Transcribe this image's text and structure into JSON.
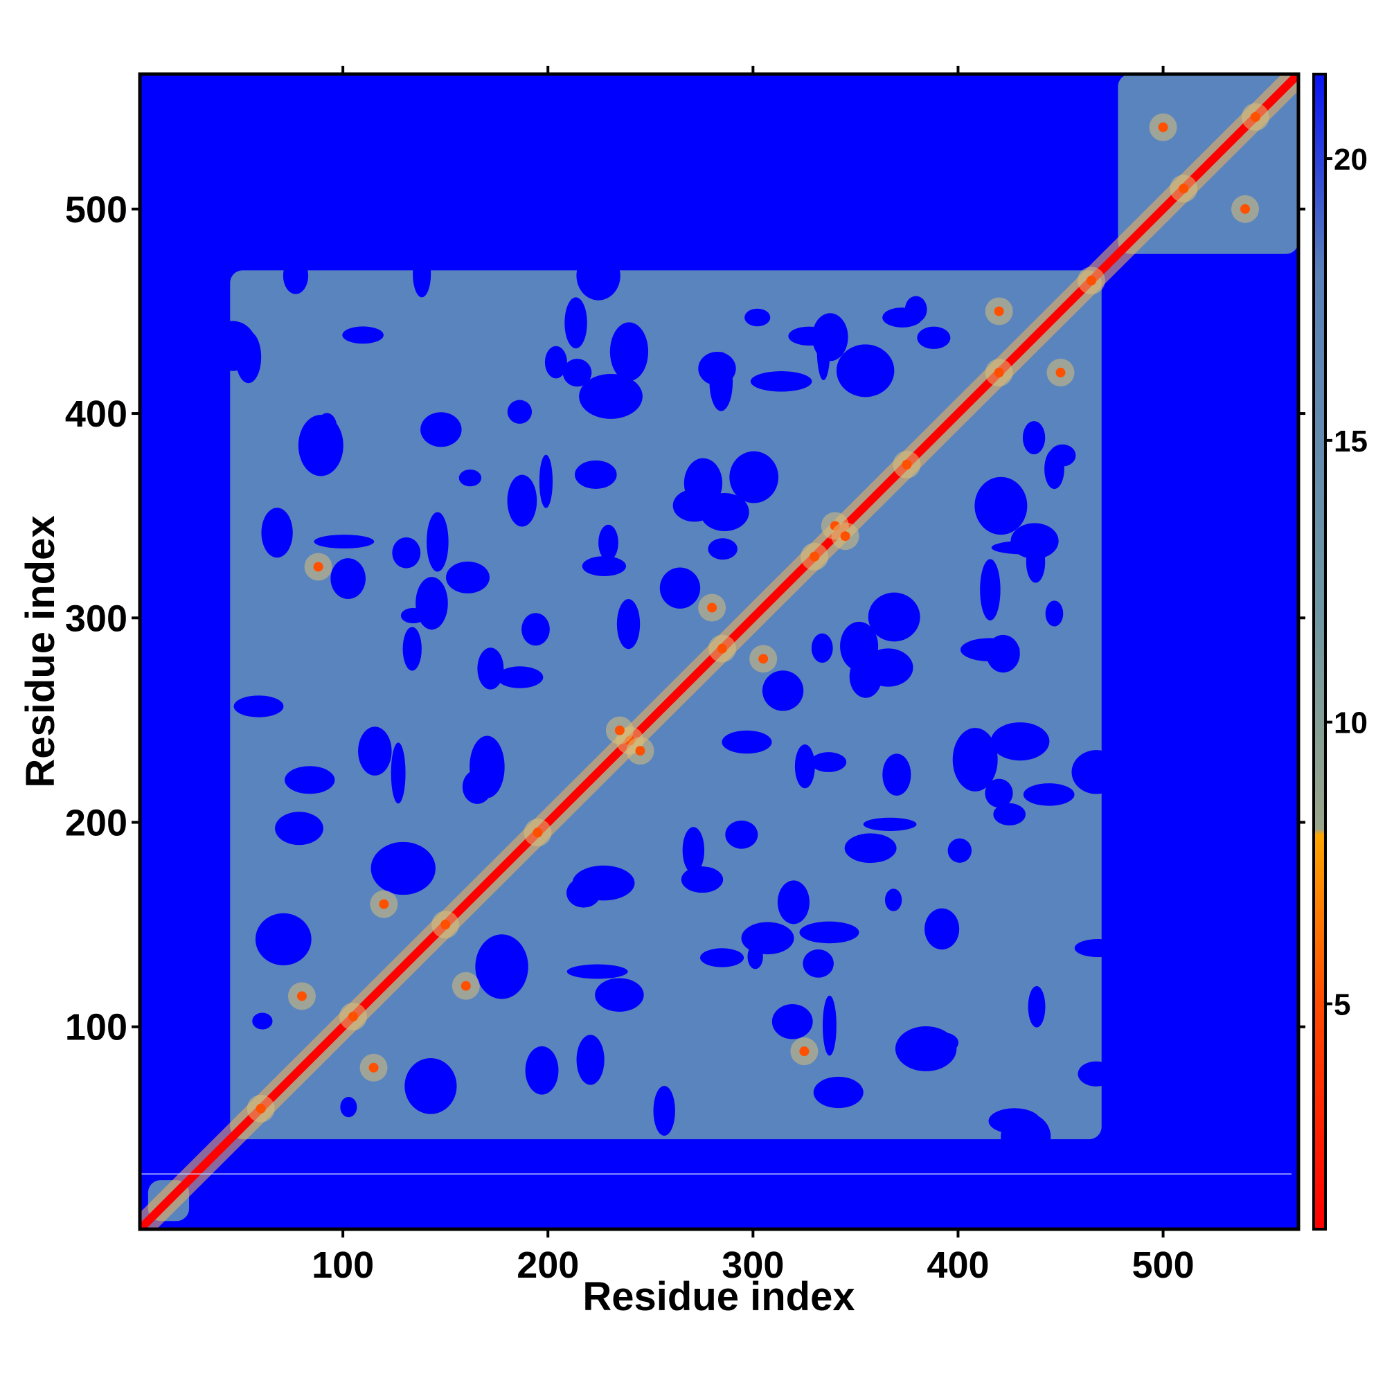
{
  "chart_data": {
    "type": "heatmap",
    "title": "",
    "xlabel": "Residue index",
    "ylabel": "Residue index",
    "n_residues": 566,
    "xlim": [
      1,
      566
    ],
    "ylim": [
      1,
      566
    ],
    "x_ticks": [
      100,
      200,
      300,
      400,
      500
    ],
    "y_ticks": [
      100,
      200,
      300,
      400,
      500
    ],
    "x_tick_labels": [
      "100",
      "200",
      "300",
      "400",
      "500"
    ],
    "y_tick_labels": [
      "100",
      "200",
      "300",
      "400",
      "500"
    ],
    "colorbar": {
      "min": 1,
      "max": 21.5,
      "ticks": [
        5,
        10,
        15,
        20
      ],
      "tick_labels": [
        "5",
        "10",
        "15",
        "20"
      ],
      "stops": [
        {
          "value": 1,
          "color": "#ff0000"
        },
        {
          "value": 5,
          "color": "#ff4a00"
        },
        {
          "value": 8,
          "color": "#ffa500"
        },
        {
          "value": 8.1,
          "color": "#9aa58a"
        },
        {
          "value": 12,
          "color": "#6e96a2"
        },
        {
          "value": 18,
          "color": "#5a7fb8"
        },
        {
          "value": 21.5,
          "color": "#0a14f5"
        }
      ],
      "placement": "right"
    },
    "background_value_color": "#0000ff",
    "diagonal_color": "#ff0000",
    "domains": [
      {
        "start": 45,
        "end": 470
      },
      {
        "start": 478,
        "end": 566
      },
      {
        "start": 5,
        "end": 25
      }
    ],
    "highlight_contacts": [
      {
        "x": 60,
        "y": 60
      },
      {
        "x": 105,
        "y": 105
      },
      {
        "x": 150,
        "y": 150
      },
      {
        "x": 195,
        "y": 195
      },
      {
        "x": 240,
        "y": 240
      },
      {
        "x": 285,
        "y": 285
      },
      {
        "x": 330,
        "y": 330
      },
      {
        "x": 375,
        "y": 375
      },
      {
        "x": 420,
        "y": 420
      },
      {
        "x": 465,
        "y": 465
      },
      {
        "x": 510,
        "y": 510
      },
      {
        "x": 545,
        "y": 545
      },
      {
        "x": 120,
        "y": 160
      },
      {
        "x": 160,
        "y": 120
      },
      {
        "x": 80,
        "y": 115
      },
      {
        "x": 115,
        "y": 80
      },
      {
        "x": 245,
        "y": 235
      },
      {
        "x": 235,
        "y": 245
      },
      {
        "x": 280,
        "y": 305
      },
      {
        "x": 305,
        "y": 280
      },
      {
        "x": 420,
        "y": 450
      },
      {
        "x": 450,
        "y": 420
      },
      {
        "x": 500,
        "y": 540
      },
      {
        "x": 540,
        "y": 500
      },
      {
        "x": 325,
        "y": 88
      },
      {
        "x": 88,
        "y": 325
      },
      {
        "x": 340,
        "y": 345
      },
      {
        "x": 345,
        "y": 340
      }
    ]
  }
}
